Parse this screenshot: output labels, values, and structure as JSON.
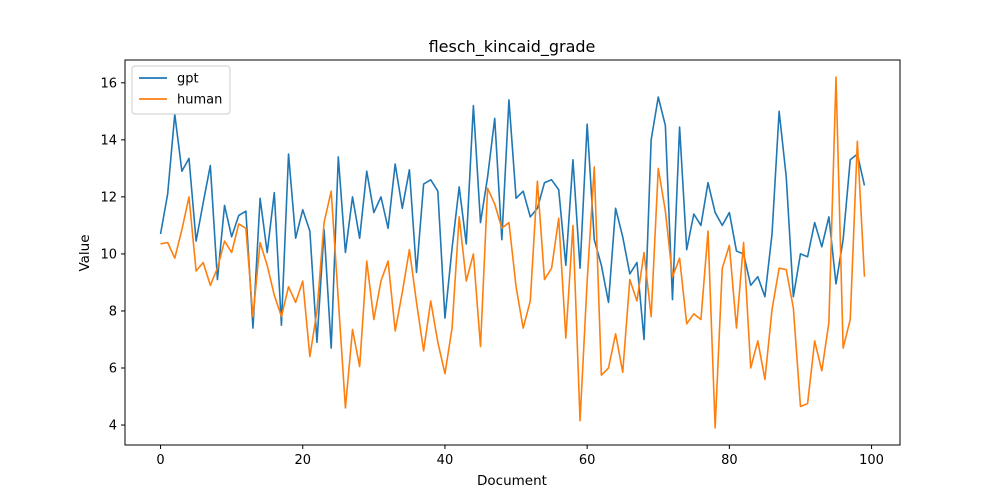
{
  "chart_data": {
    "type": "line",
    "title": "flesch_kincaid_grade",
    "xlabel": "Document",
    "ylabel": "Value",
    "xlim": [
      -5,
      104
    ],
    "ylim": [
      3.3,
      16.8
    ],
    "xticks": [
      0,
      20,
      40,
      60,
      80,
      100
    ],
    "yticks": [
      4,
      6,
      8,
      10,
      12,
      14,
      16
    ],
    "grid": false,
    "legend_position": "top-left",
    "x": [
      0,
      1,
      2,
      3,
      4,
      5,
      6,
      7,
      8,
      9,
      10,
      11,
      12,
      13,
      14,
      15,
      16,
      17,
      18,
      19,
      20,
      21,
      22,
      23,
      24,
      25,
      26,
      27,
      28,
      29,
      30,
      31,
      32,
      33,
      34,
      35,
      36,
      37,
      38,
      39,
      40,
      41,
      42,
      43,
      44,
      45,
      46,
      47,
      48,
      49,
      50,
      51,
      52,
      53,
      54,
      55,
      56,
      57,
      58,
      59,
      60,
      61,
      62,
      63,
      64,
      65,
      66,
      67,
      68,
      69,
      70,
      71,
      72,
      73,
      74,
      75,
      76,
      77,
      78,
      79,
      80,
      81,
      82,
      83,
      84,
      85,
      86,
      87,
      88,
      89,
      90,
      91,
      92,
      93,
      94,
      95,
      96,
      97,
      98,
      99
    ],
    "series": [
      {
        "name": "gpt",
        "color": "#1f77b4",
        "values": [
          10.7,
          12.1,
          14.9,
          12.9,
          13.35,
          10.45,
          11.8,
          13.1,
          9.1,
          11.7,
          10.6,
          11.35,
          11.5,
          7.4,
          11.95,
          10.05,
          12.15,
          7.5,
          13.5,
          10.55,
          11.55,
          10.8,
          6.9,
          10.85,
          6.7,
          13.4,
          10.05,
          12.0,
          10.55,
          12.9,
          11.45,
          12.0,
          10.9,
          13.15,
          11.6,
          12.95,
          9.35,
          12.45,
          12.6,
          12.2,
          7.75,
          10.2,
          12.35,
          10.35,
          15.2,
          11.1,
          12.7,
          14.75,
          10.5,
          15.4,
          11.95,
          12.2,
          11.3,
          11.6,
          12.5,
          12.6,
          12.25,
          9.6,
          13.3,
          9.5,
          14.55,
          10.5,
          9.6,
          8.3,
          11.6,
          10.6,
          9.3,
          9.7,
          7.0,
          14.0,
          15.5,
          14.5,
          8.4,
          14.45,
          10.15,
          11.4,
          11.0,
          12.5,
          11.45,
          11.0,
          11.45,
          10.1,
          10.0,
          8.9,
          9.2,
          8.5,
          10.7,
          15.0,
          12.7,
          8.5,
          10.0,
          9.9,
          11.1,
          10.25,
          11.3,
          8.95,
          10.5,
          13.3,
          13.5,
          12.4
        ]
      },
      {
        "name": "human",
        "color": "#ff7f0e",
        "values": [
          10.35,
          10.4,
          9.85,
          10.85,
          12.0,
          9.4,
          9.7,
          8.9,
          9.5,
          10.45,
          10.05,
          11.05,
          10.9,
          7.8,
          10.4,
          9.6,
          8.55,
          7.8,
          8.85,
          8.3,
          9.05,
          6.4,
          8.0,
          11.1,
          12.2,
          8.4,
          4.6,
          7.35,
          6.05,
          9.75,
          7.7,
          9.05,
          9.75,
          7.3,
          8.65,
          10.15,
          8.3,
          6.6,
          8.35,
          6.9,
          5.8,
          7.4,
          11.3,
          9.05,
          10.0,
          6.75,
          12.3,
          11.75,
          10.9,
          11.1,
          8.85,
          7.4,
          8.35,
          12.55,
          9.1,
          9.5,
          11.25,
          7.05,
          11.0,
          4.15,
          9.05,
          13.05,
          5.75,
          6.0,
          7.2,
          5.85,
          9.1,
          8.35,
          10.05,
          7.8,
          13.0,
          11.5,
          9.2,
          9.85,
          7.55,
          7.9,
          7.7,
          10.8,
          3.9,
          9.5,
          10.3,
          7.4,
          10.4,
          6.0,
          6.95,
          5.6,
          8.05,
          9.5,
          9.45,
          8.1,
          4.65,
          4.75,
          6.95,
          5.9,
          7.6,
          16.2,
          6.7,
          7.7,
          13.95,
          9.2
        ]
      }
    ]
  }
}
